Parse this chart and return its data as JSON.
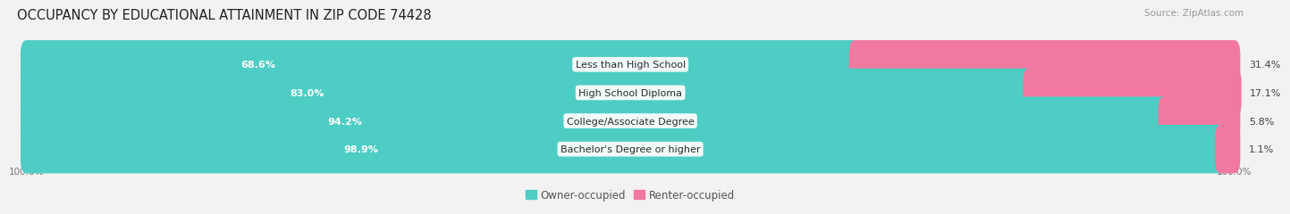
{
  "title": "OCCUPANCY BY EDUCATIONAL ATTAINMENT IN ZIP CODE 74428",
  "source": "Source: ZipAtlas.com",
  "categories": [
    "Less than High School",
    "High School Diploma",
    "College/Associate Degree",
    "Bachelor's Degree or higher"
  ],
  "owner_values": [
    68.6,
    83.0,
    94.2,
    98.9
  ],
  "renter_values": [
    31.4,
    17.1,
    5.8,
    1.1
  ],
  "owner_color": "#4ECDC4",
  "renter_color": "#F178A0",
  "background_color": "#f2f2f2",
  "bar_background": "#e2e2e2",
  "title_fontsize": 10.5,
  "label_fontsize": 8.0,
  "legend_fontsize": 8.5,
  "axis_label_fontsize": 7.5,
  "source_fontsize": 7.5
}
